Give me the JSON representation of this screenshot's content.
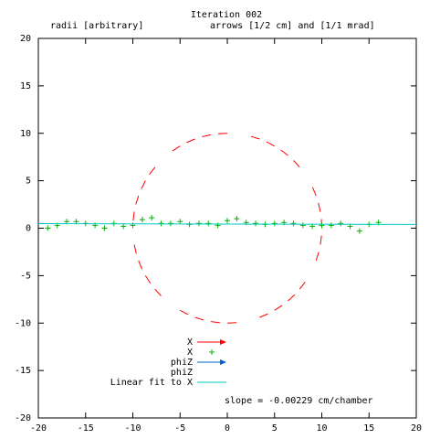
{
  "chart_data": {
    "type": "scatter",
    "title": "Iteration 002",
    "subtitle_left": "radii [arbitrary]",
    "subtitle_right": "arrows [1/2 cm] and [1/1 mrad]",
    "xlabel": "",
    "ylabel": "",
    "xlim": [
      -20,
      20
    ],
    "ylim": [
      -20,
      20
    ],
    "x_ticks": [
      -20,
      -15,
      -10,
      -5,
      0,
      5,
      10,
      15,
      20
    ],
    "y_ticks": [
      -20,
      -15,
      -10,
      -5,
      0,
      5,
      10,
      15,
      20
    ],
    "grid": false,
    "legend_position": "bottom-center",
    "annotation": "slope = -0.00229 cm/chamber",
    "colors": {
      "x_arrows": "#ff0000",
      "x_points": "#00b000",
      "phiz_arrows": "#0060d0",
      "fit_line": "#00c8c8"
    },
    "legend": [
      {
        "label": "X",
        "kind": "arrow",
        "color": "#ff0000"
      },
      {
        "label": "X",
        "kind": "plus",
        "color": "#00b000"
      },
      {
        "label": "phiZ",
        "kind": "arrow",
        "color": "#0060d0"
      },
      {
        "label": "phiZ",
        "kind": "none",
        "color": ""
      },
      {
        "label": "Linear fit to X",
        "kind": "line",
        "color": "#00c8c8"
      }
    ],
    "circle": {
      "center": [
        0,
        0
      ],
      "radius": 10,
      "style": "dashed",
      "color": "#ff0000"
    },
    "series": [
      {
        "name": "X",
        "kind": "plus",
        "x": [
          -19,
          -18,
          -17,
          -16,
          -15,
          -14,
          -13,
          -12,
          -11,
          -10,
          -9,
          -8,
          -7,
          -6,
          -5,
          -4,
          -3,
          -2,
          -1,
          0,
          1,
          2,
          3,
          4,
          5,
          6,
          7,
          8,
          9,
          10,
          11,
          12,
          13,
          14,
          15,
          16
        ],
        "y": [
          0.0,
          0.3,
          0.7,
          0.7,
          0.5,
          0.3,
          0.0,
          0.5,
          0.2,
          0.3,
          0.9,
          1.1,
          0.5,
          0.5,
          0.7,
          0.4,
          0.5,
          0.5,
          0.3,
          0.8,
          1.0,
          0.6,
          0.5,
          0.4,
          0.5,
          0.6,
          0.5,
          0.3,
          0.2,
          0.3,
          0.3,
          0.5,
          0.2,
          -0.3,
          0.4,
          0.6
        ]
      },
      {
        "name": "Linear fit to X",
        "kind": "line",
        "x": [
          -20,
          20
        ],
        "y": [
          0.48,
          0.4
        ]
      }
    ]
  }
}
